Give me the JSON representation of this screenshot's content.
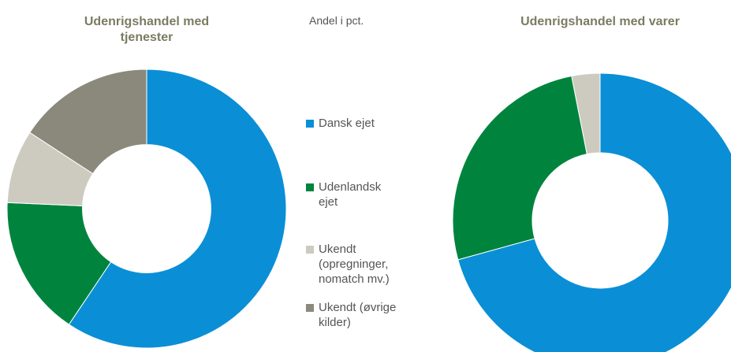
{
  "subtitle": "Andel i pct.",
  "categories": [
    "Dansk ejet",
    "Udenlandsk ejet",
    "Ukendt (opregninger, nomatch mv.)",
    "Ukendt (øvrige kilder)"
  ],
  "colors": [
    "#0a8fd6",
    "#00843d",
    "#cdcbc0",
    "#8b897b"
  ],
  "hole": 0.46,
  "chart_data": [
    {
      "type": "pie",
      "title": "Udenrigshandel med tjenester",
      "values": [
        59.4,
        16.3,
        8.5,
        15.8
      ]
    },
    {
      "type": "pie",
      "title": "Udenrigshandel med varer",
      "values": [
        70.7,
        26.2,
        3.1,
        0
      ]
    }
  ]
}
